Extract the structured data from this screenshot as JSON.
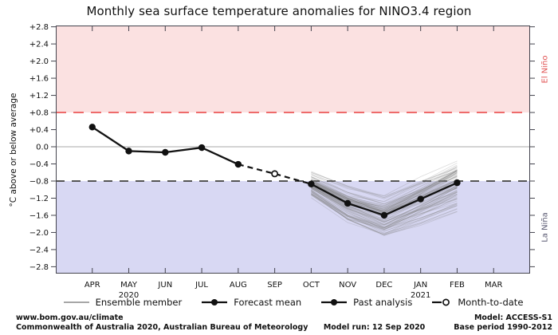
{
  "title": "Monthly sea surface temperature anomalies for NINO3.4 region",
  "ylabel": "°C above or below average",
  "region_labels": {
    "el_nino": "El Niño",
    "la_nina": "La Niña"
  },
  "legend": {
    "items": [
      {
        "label": "Ensemble member"
      },
      {
        "label": "Forecast mean"
      },
      {
        "label": "Past analysis"
      },
      {
        "label": "Month-to-date"
      }
    ]
  },
  "footer": {
    "site": "www.bom.gov.au/climate",
    "copyright": "Commonwealth of Australia 2020, Australian Bureau of Meteorology",
    "model": "Model: ACCESS-S1",
    "model_run": "Model run: 12 Sep 2020",
    "base_period": "Base period 1990-2012"
  },
  "colors": {
    "el_nino_band": "#fbe1e1",
    "la_nina_band": "#d8d8f3",
    "el_nino_line": "#ee6b6b",
    "la_nina_line": "#555555",
    "el_nino_text": "#e05252",
    "la_nina_text": "#5a5a72",
    "zero_line": "#a8a8a8",
    "ensemble": "#808080",
    "series": "#111111",
    "border": "#44444e"
  },
  "chart_data": {
    "type": "line",
    "x_categories": [
      "APR",
      "MAY",
      "JUN",
      "JUL",
      "AUG",
      "SEP",
      "OCT",
      "NOV",
      "DEC",
      "JAN",
      "FEB",
      "MAR"
    ],
    "x_year_labels": [
      {
        "index": 1,
        "label": "2020"
      },
      {
        "index": 9,
        "label": "2021"
      }
    ],
    "ylim": [
      -2.96,
      2.83
    ],
    "yticks": [
      {
        "value": 2.8,
        "label": "+2.8"
      },
      {
        "value": 2.4,
        "label": "+2.4"
      },
      {
        "value": 2.0,
        "label": "+2.0"
      },
      {
        "value": 1.6,
        "label": "+1.6"
      },
      {
        "value": 1.2,
        "label": "+1.2"
      },
      {
        "value": 0.8,
        "label": "+0.8"
      },
      {
        "value": 0.4,
        "label": "+0.4"
      },
      {
        "value": 0.0,
        "label": "0.0"
      },
      {
        "value": -0.4,
        "label": "−0.4"
      },
      {
        "value": -0.8,
        "label": "−0.8"
      },
      {
        "value": -1.2,
        "label": "−1.2"
      },
      {
        "value": -1.6,
        "label": "−1.6"
      },
      {
        "value": -2.0,
        "label": "−2.0"
      },
      {
        "value": -2.4,
        "label": "−2.4"
      },
      {
        "value": -2.8,
        "label": "−2.8"
      }
    ],
    "thresholds": {
      "el_nino": 0.8,
      "la_nina": -0.8
    },
    "series": {
      "past_analysis": {
        "name": "Past analysis",
        "months": [
          "APR",
          "MAY",
          "JUN",
          "JUL",
          "AUG"
        ],
        "values": [
          0.46,
          -0.1,
          -0.13,
          -0.02,
          -0.41
        ]
      },
      "month_to_date": {
        "name": "Month-to-date",
        "months": [
          "AUG",
          "SEP",
          "OCT"
        ],
        "values": [
          -0.41,
          -0.63,
          -0.87
        ],
        "open_marker_month": "SEP"
      },
      "forecast_mean": {
        "name": "Forecast mean",
        "months": [
          "OCT",
          "NOV",
          "DEC",
          "JAN",
          "FEB"
        ],
        "values": [
          -0.87,
          -1.32,
          -1.6,
          -1.22,
          -0.84
        ]
      },
      "ensemble": {
        "name": "Ensemble member",
        "months": [
          "OCT",
          "NOV",
          "DEC",
          "JAN",
          "FEB"
        ],
        "count": 90,
        "seed": 11,
        "spread": [
          0.27,
          0.45,
          0.55,
          0.6,
          0.62
        ]
      }
    }
  }
}
